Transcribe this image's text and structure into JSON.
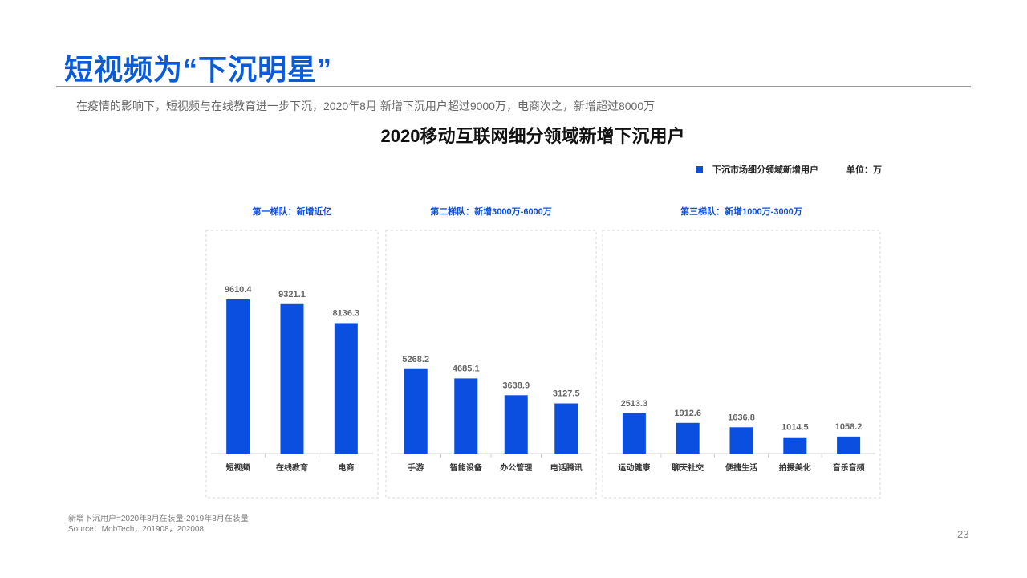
{
  "page": {
    "title": "短视频为“下沉明星”",
    "subtitle": "在疫情的影响下，短视频与在线教育进一步下沉，2020年8月 新增下沉用户超过9000万，电商次之，新增超过8000万",
    "note": "新增下沉用户=2020年8月在装量-2019年8月在装量",
    "source": "Source：MobTech，201908，202008",
    "page_number": "23"
  },
  "colors": {
    "accent": "#0a5bd8",
    "bar": "#0a4fe0",
    "tier_label": "#0a4fe0"
  },
  "chart_data": {
    "type": "bar",
    "title": "2020移动互联网细分领域新增下沉用户",
    "legend": "下沉市场细分领域新增用户",
    "unit_label": "单位：万",
    "ylim": [
      0,
      10000
    ],
    "groups": [
      {
        "label": "第一梯队：新增近亿",
        "categories": [
          "短视频",
          "在线教育",
          "电商"
        ],
        "values": [
          9610.4,
          9321.1,
          8136.3
        ]
      },
      {
        "label": "第二梯队：新增3000万-6000万",
        "categories": [
          "手游",
          "智能设备",
          "办公管理",
          "电话腾讯"
        ],
        "values": [
          5268.2,
          4685.1,
          3638.9,
          3127.5
        ]
      },
      {
        "label": "第三梯队：新增1000万-3000万",
        "categories": [
          "运动健康",
          "聊天社交",
          "便捷生活",
          "拍摄美化",
          "音乐音频"
        ],
        "values": [
          2513.3,
          1912.6,
          1636.8,
          1014.5,
          1058.2
        ]
      }
    ]
  }
}
